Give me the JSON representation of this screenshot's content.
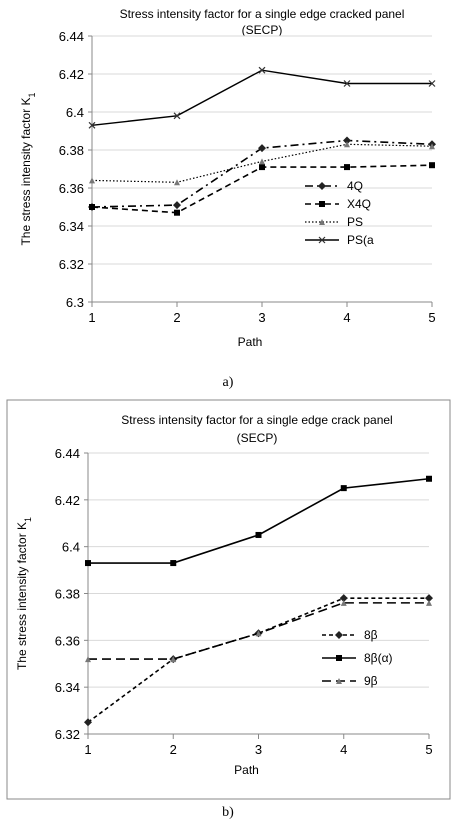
{
  "chart_data": [
    {
      "type": "line",
      "title_line1": "Stress intensity factor for a single edge cracked panel",
      "title_line2": "(SECP)",
      "xlabel": "Path",
      "ylabel": "The stress intensity factor K",
      "ylabel_sub": "1",
      "caption": "a)",
      "ylim": [
        6.3,
        6.44
      ],
      "yticks": [
        6.3,
        6.32,
        6.34,
        6.36,
        6.38,
        6.4,
        6.42,
        6.44
      ],
      "ytick_labels": [
        "6.3",
        "6.32",
        "6.34",
        "6.36",
        "6.38",
        "6.4",
        "6.42",
        "6.44"
      ],
      "categories": [
        "1",
        "2",
        "3",
        "4",
        "5"
      ],
      "legend_position": "right",
      "series": [
        {
          "name": "4Q",
          "values": [
            6.35,
            6.351,
            6.381,
            6.385,
            6.383
          ],
          "dash": "8,4,2,4",
          "marker": "diamond",
          "width": 1.6
        },
        {
          "name": "X4Q",
          "values": [
            6.35,
            6.347,
            6.371,
            6.371,
            6.372
          ],
          "dash": "6,4",
          "marker": "square",
          "width": 1.6
        },
        {
          "name": "PS",
          "values": [
            6.364,
            6.363,
            6.374,
            6.383,
            6.382
          ],
          "dash": "1.5,2",
          "marker": "triangle",
          "width": 1.2
        },
        {
          "name": "PS(a",
          "values": [
            6.393,
            6.398,
            6.422,
            6.415,
            6.415
          ],
          "dash": "",
          "marker": "x",
          "width": 1.4
        }
      ]
    },
    {
      "type": "line",
      "title_line1": "Stress intensity factor for a single edge crack panel",
      "title_line2": "(SECP)",
      "xlabel": "Path",
      "ylabel": "The stress intensity factor K",
      "ylabel_sub": "1",
      "caption": "b)",
      "ylim": [
        6.32,
        6.44
      ],
      "yticks": [
        6.32,
        6.34,
        6.36,
        6.38,
        6.4,
        6.42,
        6.44
      ],
      "ytick_labels": [
        "6.32",
        "6.34",
        "6.36",
        "6.38",
        "6.4",
        "6.42",
        "6.44"
      ],
      "categories": [
        "1",
        "2",
        "3",
        "4",
        "5"
      ],
      "legend_position": "right",
      "series": [
        {
          "name": "8β",
          "values": [
            6.325,
            6.352,
            6.363,
            6.378,
            6.378
          ],
          "dash": "4,3",
          "marker": "diamond",
          "width": 1.6
        },
        {
          "name": "8β(α)",
          "values": [
            6.393,
            6.393,
            6.405,
            6.425,
            6.429
          ],
          "dash": "",
          "marker": "square",
          "width": 1.6
        },
        {
          "name": "9β",
          "values": [
            6.352,
            6.352,
            6.363,
            6.376,
            6.376
          ],
          "dash": "9,5",
          "marker": "triangle",
          "width": 1.6
        }
      ]
    }
  ]
}
